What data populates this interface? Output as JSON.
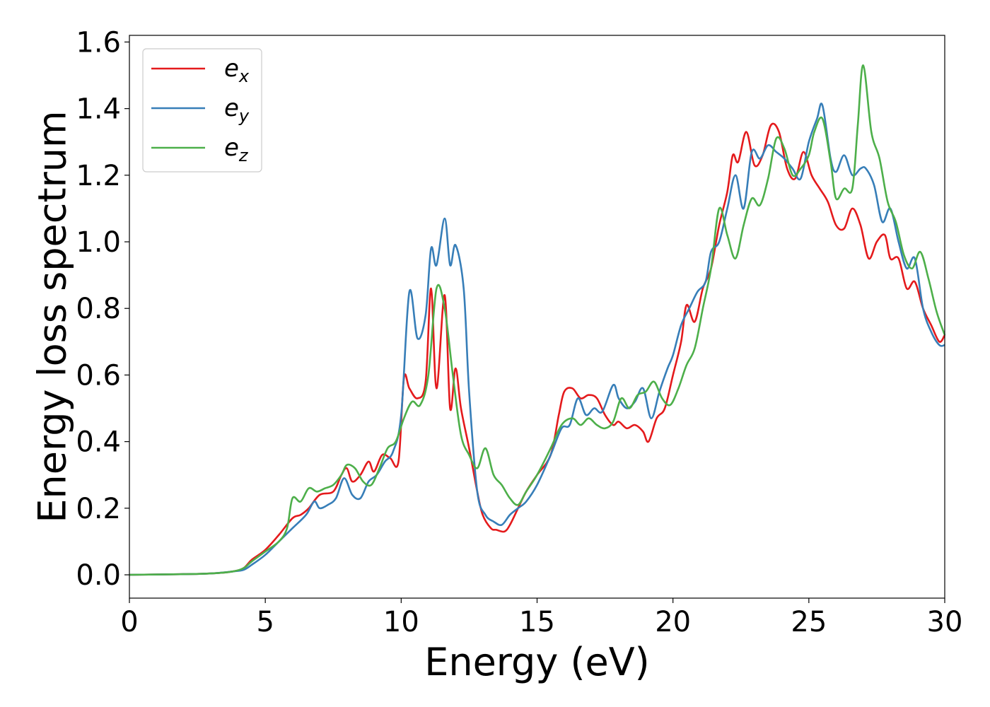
{
  "chart_data": {
    "type": "line",
    "xlabel": "Energy (eV)",
    "ylabel": "Energy loss spectrum",
    "xlim": [
      0,
      30
    ],
    "ylim": [
      -0.07,
      1.62
    ],
    "xticks": [
      0,
      5,
      10,
      15,
      20,
      25,
      30
    ],
    "xtick_labels": [
      "0",
      "5",
      "10",
      "15",
      "20",
      "25",
      "30"
    ],
    "yticks": [
      0.0,
      0.2,
      0.4,
      0.6,
      0.8,
      1.0,
      1.2,
      1.4,
      1.6
    ],
    "ytick_labels": [
      "0.0",
      "0.2",
      "0.4",
      "0.6",
      "0.8",
      "1.0",
      "1.2",
      "1.4",
      "1.6"
    ],
    "grid": false,
    "legend_position": "top-left",
    "series": [
      {
        "name": "e_x",
        "label_base": "e",
        "label_sub": "x",
        "color": "#e41a1c",
        "points": [
          [
            0,
            0
          ],
          [
            2,
            0.002
          ],
          [
            3,
            0.004
          ],
          [
            3.8,
            0.01
          ],
          [
            4.2,
            0.02
          ],
          [
            4.5,
            0.045
          ],
          [
            5,
            0.075
          ],
          [
            5.5,
            0.12
          ],
          [
            6,
            0.17
          ],
          [
            6.3,
            0.18
          ],
          [
            6.6,
            0.2
          ],
          [
            7,
            0.24
          ],
          [
            7.5,
            0.25
          ],
          [
            7.8,
            0.3
          ],
          [
            8,
            0.32
          ],
          [
            8.2,
            0.28
          ],
          [
            8.5,
            0.3
          ],
          [
            8.8,
            0.34
          ],
          [
            9,
            0.31
          ],
          [
            9.3,
            0.36
          ],
          [
            9.6,
            0.35
          ],
          [
            9.9,
            0.34
          ],
          [
            10.1,
            0.59
          ],
          [
            10.3,
            0.56
          ],
          [
            10.6,
            0.53
          ],
          [
            10.9,
            0.58
          ],
          [
            11.1,
            0.86
          ],
          [
            11.3,
            0.56
          ],
          [
            11.6,
            0.84
          ],
          [
            11.8,
            0.5
          ],
          [
            12,
            0.62
          ],
          [
            12.2,
            0.5
          ],
          [
            12.5,
            0.38
          ],
          [
            12.8,
            0.25
          ],
          [
            13,
            0.18
          ],
          [
            13.3,
            0.14
          ],
          [
            13.5,
            0.135
          ],
          [
            13.8,
            0.13
          ],
          [
            14,
            0.15
          ],
          [
            14.3,
            0.2
          ],
          [
            14.6,
            0.25
          ],
          [
            15,
            0.3
          ],
          [
            15.5,
            0.36
          ],
          [
            15.8,
            0.48
          ],
          [
            16,
            0.55
          ],
          [
            16.3,
            0.56
          ],
          [
            16.6,
            0.53
          ],
          [
            16.9,
            0.54
          ],
          [
            17.2,
            0.53
          ],
          [
            17.5,
            0.48
          ],
          [
            17.8,
            0.45
          ],
          [
            18,
            0.46
          ],
          [
            18.3,
            0.44
          ],
          [
            18.6,
            0.45
          ],
          [
            18.9,
            0.43
          ],
          [
            19.1,
            0.4
          ],
          [
            19.4,
            0.47
          ],
          [
            19.7,
            0.5
          ],
          [
            20,
            0.6
          ],
          [
            20.3,
            0.7
          ],
          [
            20.5,
            0.81
          ],
          [
            20.8,
            0.76
          ],
          [
            21.1,
            0.86
          ],
          [
            21.4,
            0.92
          ],
          [
            21.7,
            1.05
          ],
          [
            22,
            1.15
          ],
          [
            22.2,
            1.26
          ],
          [
            22.4,
            1.24
          ],
          [
            22.7,
            1.33
          ],
          [
            23,
            1.23
          ],
          [
            23.3,
            1.26
          ],
          [
            23.6,
            1.35
          ],
          [
            23.9,
            1.33
          ],
          [
            24.2,
            1.22
          ],
          [
            24.5,
            1.19
          ],
          [
            24.8,
            1.27
          ],
          [
            25.1,
            1.2
          ],
          [
            25.4,
            1.16
          ],
          [
            25.7,
            1.12
          ],
          [
            26,
            1.05
          ],
          [
            26.3,
            1.04
          ],
          [
            26.6,
            1.1
          ],
          [
            26.9,
            1.05
          ],
          [
            27.2,
            0.95
          ],
          [
            27.5,
            1.0
          ],
          [
            27.8,
            1.02
          ],
          [
            28,
            0.95
          ],
          [
            28.3,
            0.95
          ],
          [
            28.6,
            0.86
          ],
          [
            28.9,
            0.88
          ],
          [
            29.2,
            0.8
          ],
          [
            29.5,
            0.75
          ],
          [
            29.8,
            0.7
          ],
          [
            30,
            0.72
          ]
        ]
      },
      {
        "name": "e_y",
        "label_base": "e",
        "label_sub": "y",
        "color": "#377eb8",
        "points": [
          [
            0,
            0
          ],
          [
            2,
            0.002
          ],
          [
            3,
            0.004
          ],
          [
            3.8,
            0.01
          ],
          [
            4.2,
            0.015
          ],
          [
            4.5,
            0.03
          ],
          [
            5,
            0.06
          ],
          [
            5.5,
            0.1
          ],
          [
            6,
            0.14
          ],
          [
            6.5,
            0.18
          ],
          [
            6.8,
            0.22
          ],
          [
            7,
            0.2
          ],
          [
            7.3,
            0.21
          ],
          [
            7.6,
            0.23
          ],
          [
            7.9,
            0.29
          ],
          [
            8.2,
            0.24
          ],
          [
            8.5,
            0.23
          ],
          [
            8.8,
            0.28
          ],
          [
            9.1,
            0.3
          ],
          [
            9.4,
            0.34
          ],
          [
            9.7,
            0.37
          ],
          [
            10,
            0.48
          ],
          [
            10.3,
            0.85
          ],
          [
            10.6,
            0.71
          ],
          [
            10.9,
            0.78
          ],
          [
            11.1,
            0.98
          ],
          [
            11.3,
            0.93
          ],
          [
            11.6,
            1.07
          ],
          [
            11.8,
            0.93
          ],
          [
            12,
            0.99
          ],
          [
            12.3,
            0.86
          ],
          [
            12.5,
            0.55
          ],
          [
            12.8,
            0.25
          ],
          [
            13.1,
            0.18
          ],
          [
            13.4,
            0.16
          ],
          [
            13.7,
            0.15
          ],
          [
            14,
            0.18
          ],
          [
            14.3,
            0.2
          ],
          [
            14.6,
            0.22
          ],
          [
            15,
            0.27
          ],
          [
            15.5,
            0.36
          ],
          [
            15.9,
            0.44
          ],
          [
            16.2,
            0.45
          ],
          [
            16.5,
            0.53
          ],
          [
            16.8,
            0.48
          ],
          [
            17.1,
            0.5
          ],
          [
            17.4,
            0.49
          ],
          [
            17.8,
            0.57
          ],
          [
            18,
            0.53
          ],
          [
            18.3,
            0.5
          ],
          [
            18.6,
            0.52
          ],
          [
            18.9,
            0.56
          ],
          [
            19.2,
            0.47
          ],
          [
            19.5,
            0.55
          ],
          [
            19.8,
            0.62
          ],
          [
            20,
            0.66
          ],
          [
            20.3,
            0.75
          ],
          [
            20.6,
            0.8
          ],
          [
            20.9,
            0.85
          ],
          [
            21.2,
            0.88
          ],
          [
            21.4,
            0.97
          ],
          [
            21.7,
            1.0
          ],
          [
            22,
            1.1
          ],
          [
            22.3,
            1.2
          ],
          [
            22.6,
            1.1
          ],
          [
            22.9,
            1.27
          ],
          [
            23.2,
            1.25
          ],
          [
            23.5,
            1.29
          ],
          [
            23.8,
            1.27
          ],
          [
            24.1,
            1.25
          ],
          [
            24.4,
            1.22
          ],
          [
            24.7,
            1.19
          ],
          [
            25,
            1.3
          ],
          [
            25.3,
            1.37
          ],
          [
            25.5,
            1.41
          ],
          [
            25.8,
            1.25
          ],
          [
            26,
            1.21
          ],
          [
            26.3,
            1.26
          ],
          [
            26.6,
            1.2
          ],
          [
            26.9,
            1.22
          ],
          [
            27.1,
            1.22
          ],
          [
            27.4,
            1.17
          ],
          [
            27.7,
            1.06
          ],
          [
            28,
            1.1
          ],
          [
            28.3,
            1.0
          ],
          [
            28.6,
            0.92
          ],
          [
            28.9,
            0.95
          ],
          [
            29.2,
            0.8
          ],
          [
            29.5,
            0.73
          ],
          [
            29.8,
            0.69
          ],
          [
            30,
            0.69
          ]
        ]
      },
      {
        "name": "e_z",
        "label_base": "e",
        "label_sub": "z",
        "color": "#4daf4a",
        "points": [
          [
            0,
            0
          ],
          [
            2,
            0.002
          ],
          [
            3,
            0.004
          ],
          [
            3.8,
            0.01
          ],
          [
            4.2,
            0.02
          ],
          [
            4.5,
            0.04
          ],
          [
            5,
            0.07
          ],
          [
            5.5,
            0.1
          ],
          [
            5.8,
            0.14
          ],
          [
            6,
            0.23
          ],
          [
            6.3,
            0.22
          ],
          [
            6.6,
            0.26
          ],
          [
            6.9,
            0.25
          ],
          [
            7.2,
            0.26
          ],
          [
            7.5,
            0.27
          ],
          [
            7.8,
            0.3
          ],
          [
            8,
            0.33
          ],
          [
            8.3,
            0.32
          ],
          [
            8.6,
            0.28
          ],
          [
            8.9,
            0.27
          ],
          [
            9.2,
            0.32
          ],
          [
            9.5,
            0.38
          ],
          [
            9.8,
            0.4
          ],
          [
            10.1,
            0.47
          ],
          [
            10.4,
            0.52
          ],
          [
            10.7,
            0.51
          ],
          [
            11,
            0.6
          ],
          [
            11.3,
            0.86
          ],
          [
            11.6,
            0.8
          ],
          [
            11.9,
            0.6
          ],
          [
            12.2,
            0.42
          ],
          [
            12.5,
            0.36
          ],
          [
            12.8,
            0.32
          ],
          [
            13.1,
            0.38
          ],
          [
            13.4,
            0.3
          ],
          [
            13.7,
            0.27
          ],
          [
            14,
            0.23
          ],
          [
            14.3,
            0.21
          ],
          [
            14.6,
            0.25
          ],
          [
            15,
            0.3
          ],
          [
            15.5,
            0.38
          ],
          [
            15.9,
            0.45
          ],
          [
            16.3,
            0.47
          ],
          [
            16.6,
            0.45
          ],
          [
            16.9,
            0.47
          ],
          [
            17.2,
            0.45
          ],
          [
            17.5,
            0.44
          ],
          [
            17.8,
            0.46
          ],
          [
            18.1,
            0.53
          ],
          [
            18.4,
            0.5
          ],
          [
            18.7,
            0.54
          ],
          [
            19,
            0.55
          ],
          [
            19.3,
            0.58
          ],
          [
            19.6,
            0.53
          ],
          [
            19.9,
            0.51
          ],
          [
            20.2,
            0.56
          ],
          [
            20.5,
            0.63
          ],
          [
            20.8,
            0.68
          ],
          [
            21.1,
            0.8
          ],
          [
            21.4,
            0.92
          ],
          [
            21.7,
            1.1
          ],
          [
            22,
            1.02
          ],
          [
            22.3,
            0.95
          ],
          [
            22.6,
            1.05
          ],
          [
            22.9,
            1.13
          ],
          [
            23.2,
            1.11
          ],
          [
            23.5,
            1.19
          ],
          [
            23.8,
            1.31
          ],
          [
            24.1,
            1.28
          ],
          [
            24.4,
            1.2
          ],
          [
            24.7,
            1.22
          ],
          [
            25,
            1.26
          ],
          [
            25.2,
            1.33
          ],
          [
            25.5,
            1.37
          ],
          [
            25.8,
            1.24
          ],
          [
            26,
            1.13
          ],
          [
            26.3,
            1.16
          ],
          [
            26.6,
            1.16
          ],
          [
            26.8,
            1.35
          ],
          [
            27,
            1.53
          ],
          [
            27.3,
            1.33
          ],
          [
            27.6,
            1.25
          ],
          [
            27.9,
            1.12
          ],
          [
            28.2,
            1.06
          ],
          [
            28.5,
            0.96
          ],
          [
            28.8,
            0.92
          ],
          [
            29.1,
            0.97
          ],
          [
            29.4,
            0.89
          ],
          [
            29.7,
            0.79
          ],
          [
            30,
            0.72
          ]
        ]
      }
    ]
  }
}
